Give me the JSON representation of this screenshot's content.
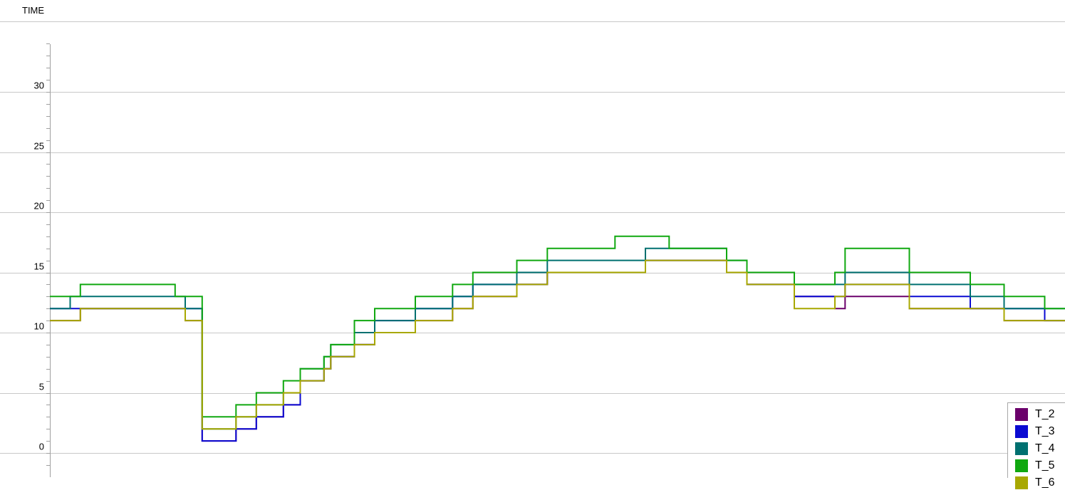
{
  "chart_data": {
    "type": "line",
    "title": "",
    "ylabel": "TIME",
    "xlabel": "",
    "ylim": [
      -2,
      36
    ],
    "yticks": [
      0,
      5,
      10,
      15,
      20,
      25,
      30
    ],
    "grid": true,
    "step": true,
    "legend_position": "bottom-right",
    "x": [
      0,
      6,
      9,
      14,
      37,
      40,
      45,
      46,
      55,
      61,
      69,
      74,
      81,
      83,
      90,
      96,
      108,
      119,
      125,
      138,
      147,
      167,
      176,
      183,
      200,
      206,
      220,
      232,
      235,
      254,
      272,
      282,
      294,
      300
    ],
    "series": [
      {
        "name": "T_2",
        "color": "#6b006b",
        "values": [
          11,
          11,
          12,
          12,
          12,
          11,
          1,
          1,
          2,
          3,
          4,
          6,
          7,
          8,
          9,
          10,
          11,
          12,
          13,
          14,
          15,
          15,
          16,
          16,
          15,
          14,
          13,
          12,
          13,
          12,
          12,
          11,
          11,
          11
        ]
      },
      {
        "name": "T_3",
        "color": "#0a0ad2",
        "values": [
          12,
          12,
          12,
          12,
          12,
          12,
          1,
          1,
          2,
          3,
          4,
          6,
          7,
          8,
          9,
          11,
          12,
          13,
          14,
          14,
          15,
          15,
          16,
          16,
          15,
          14,
          13,
          13,
          14,
          13,
          12,
          12,
          11,
          11
        ]
      },
      {
        "name": "T_4",
        "color": "#007070",
        "values": [
          12,
          13,
          13,
          13,
          13,
          12,
          2,
          2,
          3,
          4,
          5,
          7,
          8,
          9,
          10,
          11,
          12,
          13,
          14,
          15,
          16,
          16,
          17,
          17,
          16,
          15,
          14,
          14,
          15,
          14,
          13,
          12,
          12,
          12
        ]
      },
      {
        "name": "T_5",
        "color": "#10a810",
        "values": [
          13,
          13,
          14,
          14,
          13,
          13,
          3,
          3,
          4,
          5,
          6,
          7,
          8,
          9,
          11,
          12,
          13,
          14,
          15,
          16,
          17,
          18,
          18,
          17,
          16,
          15,
          14,
          15,
          17,
          15,
          14,
          13,
          12,
          12
        ]
      },
      {
        "name": "T_6",
        "color": "#a8a800",
        "values": [
          11,
          11,
          12,
          12,
          12,
          11,
          2,
          2,
          3,
          4,
          5,
          6,
          7,
          8,
          9,
          10,
          11,
          12,
          13,
          14,
          15,
          15,
          16,
          16,
          15,
          14,
          12,
          13,
          14,
          12,
          12,
          11,
          11,
          11
        ]
      }
    ]
  }
}
